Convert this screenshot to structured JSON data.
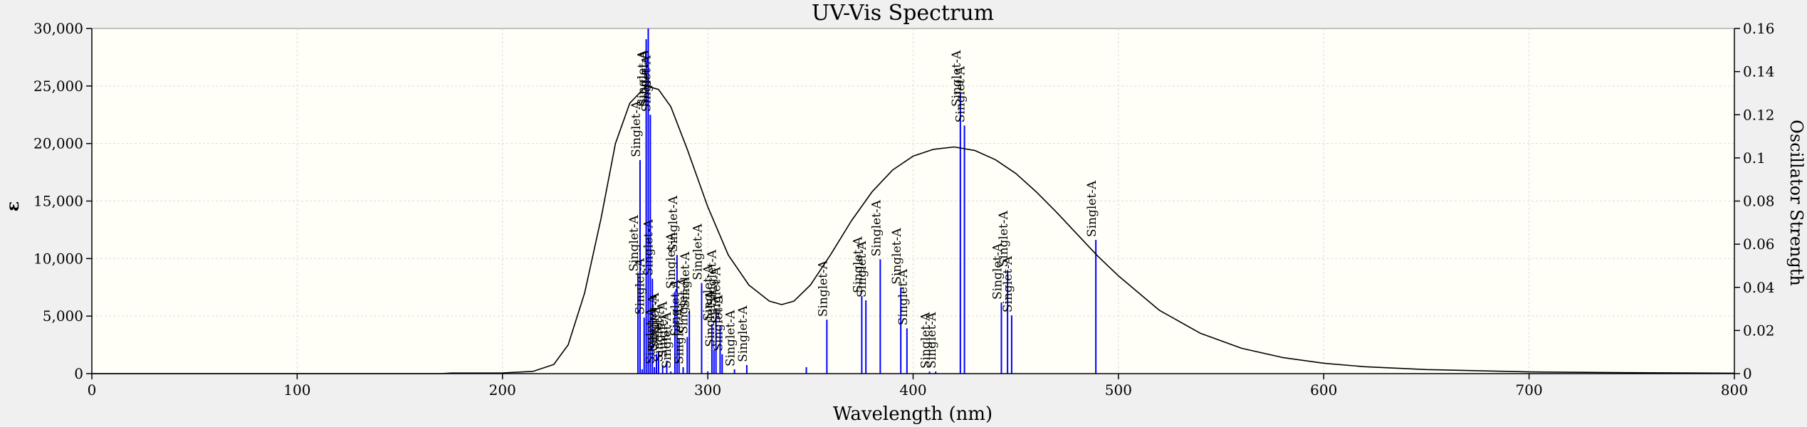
{
  "chart_data": {
    "type": "line",
    "title": "UV-Vis Spectrum",
    "xlabel": "Wavelength (nm)",
    "ylabel": "ε",
    "y2label": "Oscillator Strength",
    "xlim": [
      0,
      800
    ],
    "ylim": [
      0,
      30000
    ],
    "y2lim": [
      0,
      0.16
    ],
    "x_ticks": [
      0,
      100,
      200,
      300,
      400,
      500,
      600,
      700,
      800
    ],
    "x_tick_labels": [
      "0",
      "100",
      "200",
      "300",
      "400",
      "500",
      "600",
      "700",
      "800"
    ],
    "y_ticks": [
      0,
      5000,
      10000,
      15000,
      20000,
      25000,
      30000
    ],
    "y_tick_labels": [
      "0",
      "5,000",
      "10,000",
      "15,000",
      "20,000",
      "25,000",
      "30,000"
    ],
    "y2_ticks": [
      0,
      0.02,
      0.04,
      0.06,
      0.08,
      0.1,
      0.12,
      0.14,
      0.16
    ],
    "y2_tick_labels": [
      "0",
      "0.02",
      "0.04",
      "0.06",
      "0.08",
      "0.1",
      "0.12",
      "0.14",
      "0.16"
    ],
    "grid": true,
    "colors": {
      "plot_bg": "#fffff8",
      "curve": "#000000",
      "sticks": "#0000ff",
      "grid": "#dcdcdc"
    },
    "spectrum": {
      "x": [
        0,
        170,
        175,
        200,
        215,
        225,
        232,
        240,
        248,
        255,
        262,
        270,
        276,
        282,
        290,
        300,
        310,
        320,
        330,
        336,
        342,
        350,
        360,
        370,
        380,
        390,
        400,
        410,
        420,
        430,
        440,
        450,
        460,
        470,
        480,
        490,
        500,
        520,
        540,
        560,
        580,
        600,
        620,
        650,
        700,
        750,
        800
      ],
      "y": [
        0,
        0,
        50,
        60,
        200,
        800,
        2500,
        7000,
        13500,
        20000,
        23500,
        25000,
        24700,
        23200,
        19500,
        14500,
        10300,
        7700,
        6300,
        6000,
        6300,
        7700,
        10400,
        13300,
        15800,
        17700,
        18900,
        19500,
        19700,
        19400,
        18600,
        17400,
        15800,
        14000,
        12100,
        10200,
        8500,
        5500,
        3500,
        2200,
        1400,
        900,
        600,
        350,
        150,
        80,
        40
      ]
    },
    "transitions": {
      "label": "Singlet-A",
      "x": [
        266,
        267,
        268,
        269,
        270,
        271,
        272,
        273,
        274,
        275,
        276,
        278,
        280,
        282,
        284,
        285,
        286,
        288,
        290,
        291,
        297,
        300,
        302,
        303,
        304,
        306,
        307,
        313,
        319,
        348,
        358,
        375,
        377,
        384,
        394,
        397,
        408,
        411,
        423,
        425,
        443,
        446,
        448,
        489
      ],
      "f": [
        0.046,
        0.099,
        0.002,
        0.026,
        0.155,
        0.16,
        0.12,
        0.044,
        0.003,
        0.009,
        0.01,
        0.004,
        0.006,
        0.001,
        0.038,
        0.055,
        0.016,
        0.003,
        0.017,
        0.029,
        0.042,
        0.001,
        0.023,
        0.011,
        0.03,
        0.022,
        0.009,
        0.002,
        0.004,
        0.003,
        0.025,
        0.036,
        0.034,
        0.053,
        0.04,
        0.021,
        0.001,
        0.001,
        0.13,
        0.115,
        0.033,
        0.048,
        0.027,
        0.062
      ],
      "labeled": [
        true,
        true,
        false,
        true,
        true,
        true,
        true,
        true,
        true,
        true,
        true,
        true,
        true,
        true,
        true,
        true,
        true,
        true,
        true,
        true,
        true,
        false,
        true,
        true,
        true,
        true,
        true,
        true,
        true,
        false,
        true,
        true,
        true,
        true,
        true,
        true,
        true,
        true,
        true,
        true,
        true,
        true,
        true,
        true
      ]
    }
  }
}
